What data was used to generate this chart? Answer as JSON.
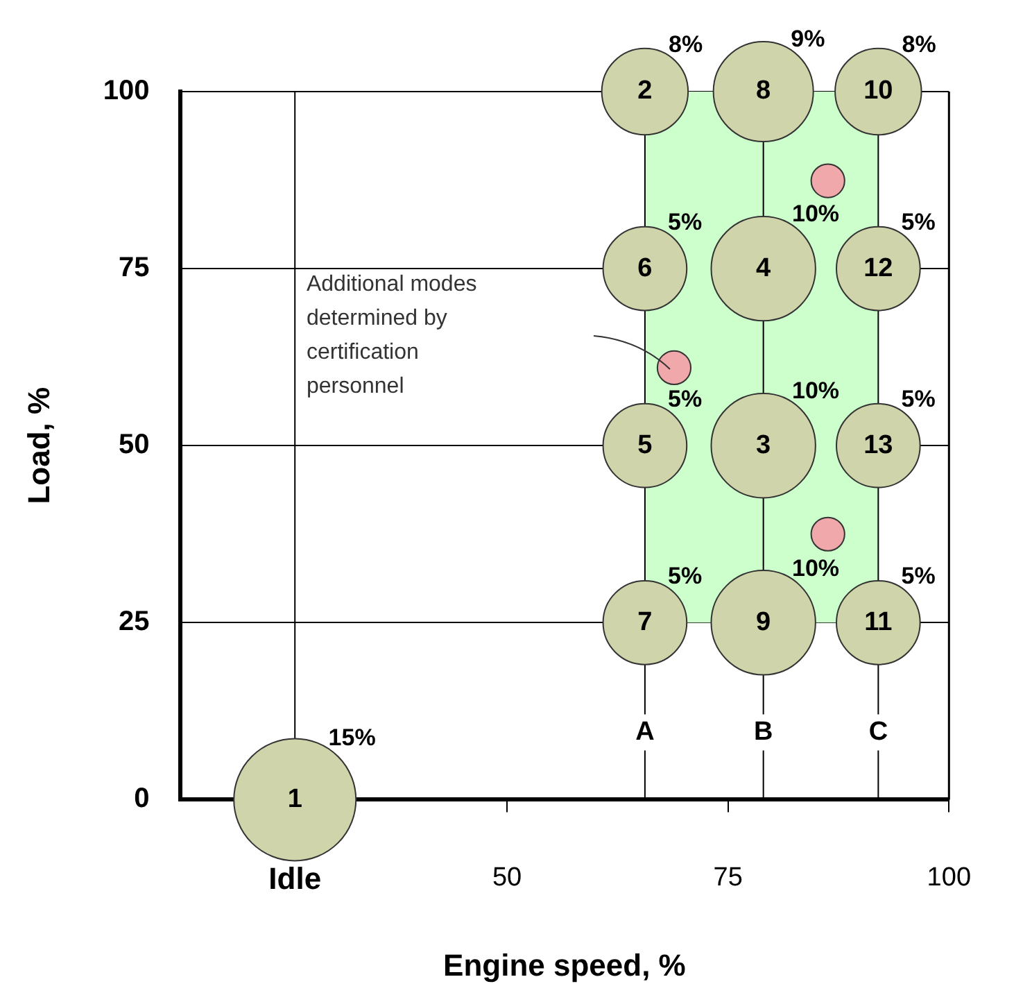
{
  "chart_data": {
    "type": "bubble",
    "xlabel": "Engine speed, %",
    "ylabel": "Load, %",
    "xlim": [
      13,
      100
    ],
    "xticks": [
      {
        "value": 26,
        "label": "Idle"
      },
      50,
      75,
      100
    ],
    "ylim": [
      0,
      100
    ],
    "yticks": [
      0,
      25,
      50,
      75,
      100
    ],
    "grid": "y",
    "legend": false,
    "series": [
      {
        "color": "#d0d4aa",
        "x": [
          26,
          65.6,
          79,
          92,
          65.6,
          79,
          92,
          65.6,
          79,
          92,
          65.6,
          79,
          92
        ],
        "values": [
          0,
          100,
          100,
          100,
          75,
          75,
          75,
          50,
          50,
          50,
          25,
          25,
          25
        ],
        "sizes": [
          1,
          0.5,
          0.67,
          0.5,
          0.47,
          0.73,
          0.47,
          0.47,
          0.73,
          0.47,
          0.47,
          0.73,
          0.47
        ]
      },
      {
        "color": "#f0a8aa",
        "x": [
          68.9,
          86.3,
          86.3
        ],
        "values": [
          61,
          87.4,
          37.5
        ],
        "sizes": [
          0.075,
          0.075,
          0.075
        ]
      }
    ],
    "ref_lines": [
      {
        "axis": "x",
        "value": 26
      },
      {
        "axis": "x",
        "value": 65.6
      },
      {
        "axis": "x",
        "value": 79
      },
      {
        "axis": "x",
        "value": 92
      }
    ],
    "bands": [
      {
        "axis": "x",
        "from": 65.6,
        "to": 92,
        "color": "#ccffcc"
      }
    ],
    "annotations": [
      {
        "text": "1",
        "x": 26,
        "y": 0
      },
      {
        "text": "2",
        "x": 65.6,
        "y": 100
      },
      {
        "text": "8",
        "x": 79,
        "y": 100
      },
      {
        "text": "10",
        "x": 92,
        "y": 100
      },
      {
        "text": "6",
        "x": 65.6,
        "y": 75
      },
      {
        "text": "4",
        "x": 79,
        "y": 75
      },
      {
        "text": "12",
        "x": 92,
        "y": 75
      },
      {
        "text": "5",
        "x": 65.6,
        "y": 50
      },
      {
        "text": "3",
        "x": 79,
        "y": 50
      },
      {
        "text": "13",
        "x": 92,
        "y": 50
      },
      {
        "text": "7",
        "x": 65.6,
        "y": 25
      },
      {
        "text": "9",
        "x": 79,
        "y": 25
      },
      {
        "text": "11",
        "x": 92,
        "y": 25
      },
      {
        "text": "15%",
        "x": 26,
        "y": 0
      },
      {
        "text": "8%",
        "x": 65.6,
        "y": 100
      },
      {
        "text": "9%",
        "x": 79,
        "y": 100
      },
      {
        "text": "8%",
        "x": 92,
        "y": 100
      },
      {
        "text": "5%",
        "x": 65.6,
        "y": 75
      },
      {
        "text": "10%",
        "x": 79,
        "y": 75
      },
      {
        "text": "5%",
        "x": 92,
        "y": 75
      },
      {
        "text": "5%",
        "x": 65.6,
        "y": 50
      },
      {
        "text": "10%",
        "x": 79,
        "y": 50
      },
      {
        "text": "5%",
        "x": 92,
        "y": 50
      },
      {
        "text": "5%",
        "x": 65.6,
        "y": 25
      },
      {
        "text": "10%",
        "x": 79,
        "y": 25
      },
      {
        "text": "5%",
        "x": 92,
        "y": 25
      },
      {
        "text": "A",
        "x": 65.6,
        "y": 9.5
      },
      {
        "text": "B",
        "x": 79,
        "y": 9.5
      },
      {
        "text": "C",
        "x": 92,
        "y": 9.5
      },
      "Additional modes determined by certification personnel"
    ]
  }
}
